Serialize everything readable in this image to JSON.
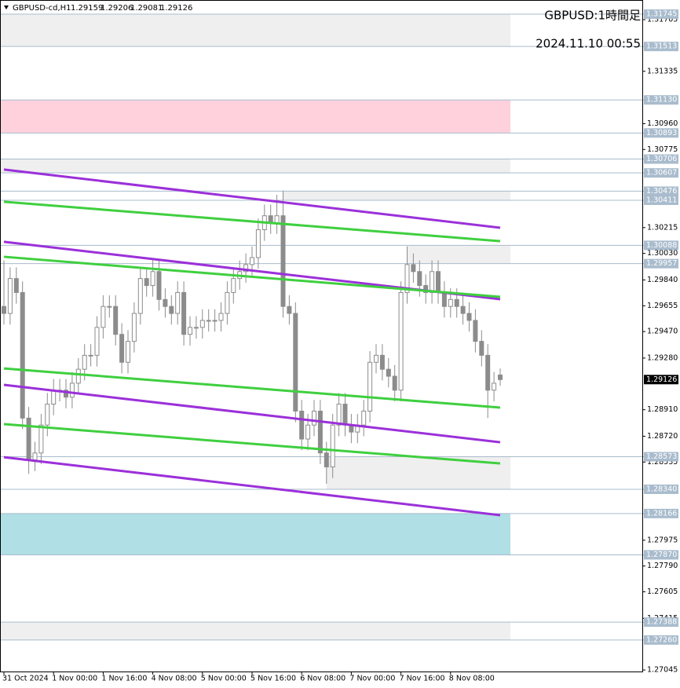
{
  "chart_data": {
    "type": "candlestick",
    "symbol": "GBPUSD-cd,H1",
    "annotations": [
      "GBPUSD:1時間足",
      "2024.11.10 00:55"
    ],
    "categories": [
      "31 Oct 2024",
      null,
      null,
      null,
      null,
      null,
      null,
      null,
      "1 Nov 00:00",
      null,
      null,
      null,
      null,
      null,
      null,
      null,
      "1 Nov 16:00",
      null,
      null,
      null,
      null,
      null,
      null,
      null,
      "4 Nov 08:00",
      null,
      null,
      null,
      null,
      null,
      null,
      null,
      "5 Nov 00:00",
      null,
      null,
      null,
      null,
      null,
      null,
      null,
      "5 Nov 16:00",
      null,
      null,
      null,
      null,
      null,
      null,
      null,
      "6 Nov 08:00",
      null,
      null,
      null,
      null,
      null,
      null,
      null,
      "7 Nov 00:00",
      null,
      null,
      null,
      null,
      null,
      null,
      null,
      "7 Nov 16:00",
      null,
      null,
      null,
      null,
      null,
      null,
      null,
      "8 Nov 08:00",
      null,
      null,
      null,
      null,
      null,
      null,
      null,
      null
    ],
    "open": [
      1.2965,
      1.296,
      1.2985,
      1.2975,
      1.2885,
      1.2855,
      1.286,
      1.288,
      1.2895,
      1.2905,
      1.2905,
      1.29,
      1.291,
      1.292,
      1.293,
      1.293,
      1.295,
      1.2965,
      1.2965,
      1.2945,
      1.2925,
      1.294,
      1.296,
      1.2985,
      1.298,
      1.299,
      1.297,
      1.2965,
      1.296,
      1.2975,
      1.2945,
      1.295,
      1.295,
      1.2955,
      1.2955,
      1.2955,
      1.296,
      1.2975,
      1.2985,
      1.299,
      1.2995,
      1.3,
      1.302,
      1.303,
      1.3025,
      1.303,
      1.2965,
      1.296,
      1.289,
      1.287,
      1.288,
      1.289,
      1.286,
      1.285,
      1.288,
      1.2895,
      1.288,
      1.2875,
      1.288,
      1.289,
      1.2925,
      1.293,
      1.292,
      1.2915,
      1.2905,
      1.2975,
      1.2995,
      1.299,
      1.298,
      1.2975,
      1.299,
      1.2975,
      1.2965,
      1.297,
      1.2965,
      1.296,
      1.2955,
      1.294,
      1.293,
      1.2905,
      1.29159
    ],
    "high": [
      1.2998,
      1.2993,
      1.2993,
      1.2983,
      1.2893,
      1.2868,
      1.2888,
      1.2903,
      1.2913,
      1.2913,
      1.2913,
      1.2918,
      1.2928,
      1.2938,
      1.2938,
      1.2958,
      1.2973,
      1.2973,
      1.2973,
      1.2953,
      1.2948,
      1.2968,
      1.2993,
      1.2993,
      1.2998,
      1.2998,
      1.2978,
      1.2973,
      1.2983,
      1.2983,
      1.2958,
      1.2958,
      1.2963,
      1.2963,
      1.2963,
      1.2968,
      1.2983,
      1.2993,
      1.2998,
      1.3003,
      1.3008,
      1.3028,
      1.3038,
      1.3038,
      1.3045,
      1.3048,
      1.2973,
      1.2968,
      1.2898,
      1.2888,
      1.2898,
      1.2898,
      1.2868,
      1.2888,
      1.2903,
      1.2903,
      1.2888,
      1.2888,
      1.2898,
      1.2933,
      1.2938,
      1.2938,
      1.2928,
      1.2923,
      1.2983,
      1.3008,
      1.3003,
      1.2998,
      1.2988,
      1.2998,
      1.2998,
      1.2983,
      1.2978,
      1.2978,
      1.2973,
      1.2968,
      1.2963,
      1.2948,
      1.2938,
      1.2918,
      1.29206
    ],
    "low": [
      1.2952,
      1.2952,
      1.2967,
      1.2877,
      1.2845,
      1.2847,
      1.2852,
      1.2872,
      1.2887,
      1.2897,
      1.2892,
      1.2892,
      1.2902,
      1.2912,
      1.2922,
      1.2922,
      1.2942,
      1.2957,
      1.2937,
      1.2917,
      1.2917,
      1.2932,
      1.2952,
      1.2972,
      1.2972,
      1.2962,
      1.2957,
      1.2952,
      1.2952,
      1.2937,
      1.2937,
      1.2942,
      1.2942,
      1.2947,
      1.2947,
      1.2947,
      1.2952,
      1.2967,
      1.2977,
      1.2982,
      1.2987,
      1.2992,
      1.3012,
      1.3017,
      1.3017,
      1.2957,
      1.2952,
      1.2882,
      1.2862,
      1.2862,
      1.2872,
      1.2852,
      1.2838,
      1.2842,
      1.2872,
      1.2872,
      1.2867,
      1.2867,
      1.2872,
      1.2882,
      1.2917,
      1.2912,
      1.2907,
      1.2897,
      1.2897,
      1.2967,
      1.2982,
      1.2972,
      1.2967,
      1.2967,
      1.2967,
      1.2957,
      1.2957,
      1.2957,
      1.2952,
      1.2947,
      1.2932,
      1.2922,
      1.2885,
      1.2897,
      1.29081
    ],
    "close": [
      1.296,
      1.2985,
      1.2975,
      1.2885,
      1.2855,
      1.286,
      1.288,
      1.2895,
      1.2905,
      1.2905,
      1.29,
      1.291,
      1.292,
      1.293,
      1.293,
      1.295,
      1.2965,
      1.2965,
      1.2945,
      1.2925,
      1.294,
      1.296,
      1.2985,
      1.298,
      1.299,
      1.297,
      1.2965,
      1.296,
      1.2975,
      1.2945,
      1.295,
      1.295,
      1.2955,
      1.2955,
      1.2955,
      1.296,
      1.2975,
      1.2985,
      1.299,
      1.2995,
      1.3,
      1.302,
      1.303,
      1.3025,
      1.303,
      1.2965,
      1.296,
      1.289,
      1.287,
      1.288,
      1.289,
      1.286,
      1.285,
      1.288,
      1.2895,
      1.288,
      1.2875,
      1.288,
      1.289,
      1.2925,
      1.293,
      1.292,
      1.2915,
      1.2905,
      1.2975,
      1.2995,
      1.299,
      1.298,
      1.2975,
      1.299,
      1.2975,
      1.2965,
      1.297,
      1.2965,
      1.296,
      1.2955,
      1.294,
      1.293,
      1.2905,
      1.291,
      1.29126
    ],
    "candle_color": "#8c8c8c",
    "ylim": [
      1.31846,
      1.27034
    ],
    "yticks": [
      1.31705,
      1.31335,
      {
        "value": 1.3096,
        "label": "1.30960"
      },
      1.30775,
      1.30215,
      {
        "value": 1.3003,
        "label": "1.30030"
      },
      {
        "value": 1.2984,
        "label": "1.29840"
      },
      1.29655,
      {
        "value": 1.2947,
        "label": "1.29470"
      },
      {
        "value": 1.2928,
        "label": "1.29280"
      },
      {
        "value": 1.2891,
        "label": "1.28910"
      },
      {
        "value": 1.2872,
        "label": "1.28720"
      },
      1.28535,
      1.27975,
      {
        "value": 1.2779,
        "label": "1.27790"
      },
      1.27605,
      1.27415,
      1.27045
    ],
    "levels": [
      1.31745,
      1.31513,
      {
        "value": 1.3113,
        "label": "1.31130"
      },
      1.30893,
      1.30706,
      1.30607,
      1.30476,
      1.30411,
      1.30088,
      1.29957,
      1.28573,
      {
        "value": 1.2834,
        "label": "1.28340"
      },
      1.28166,
      {
        "value": 1.2787,
        "label": "1.27870"
      },
      1.27388,
      {
        "value": 1.2726,
        "label": "1.27260"
      }
    ],
    "level_color": "#a9bccd",
    "zones": [
      {
        "from": 1.31745,
        "to": 1.31513,
        "start": 0,
        "color": "#efefef"
      },
      {
        "from": 1.3113,
        "to": 1.30893,
        "start": 0,
        "color": "#ffd1dc"
      },
      {
        "from": 1.30706,
        "to": 1.30607,
        "start": 0,
        "color": "#efefef"
      },
      {
        "from": 1.30476,
        "to": 1.30411,
        "start": 45,
        "color": "#efefef"
      },
      {
        "from": 1.30088,
        "to": 1.29957,
        "start": 65,
        "color": "#efefef"
      },
      {
        "from": 1.28573,
        "to": 1.2834,
        "start": 52,
        "color": "#efefef"
      },
      {
        "from": 1.28166,
        "to": 1.2787,
        "start": 0,
        "color": "#b0dfe5"
      },
      {
        "from": 1.27388,
        "to": 1.2726,
        "start": 0,
        "color": "#efefef"
      }
    ],
    "trendlines": [
      {
        "color": "#9b30d9",
        "x": [
          0,
          80
        ],
        "values": [
          1.30631,
          1.30214
        ]
      },
      {
        "color": "#3fcf3f",
        "x": [
          0,
          80
        ],
        "values": [
          1.304,
          1.30118
        ]
      },
      {
        "color": "#9b30d9",
        "x": [
          0,
          80
        ],
        "values": [
          1.30113,
          1.29702
        ]
      },
      {
        "color": "#3fcf3f",
        "x": [
          0,
          80
        ],
        "values": [
          1.30006,
          1.29719
        ]
      },
      {
        "color": "#3fcf3f",
        "x": [
          0,
          80
        ],
        "values": [
          1.29206,
          1.28925
        ]
      },
      {
        "color": "#9b30d9",
        "x": [
          0,
          80
        ],
        "values": [
          1.29088,
          1.28677
        ]
      },
      {
        "color": "#3fcf3f",
        "x": [
          0,
          80
        ],
        "values": [
          1.28807,
          1.28525
        ]
      },
      {
        "color": "#9b30d9",
        "x": [
          0,
          80
        ],
        "values": [
          1.2857,
          1.28154
        ]
      }
    ]
  }
}
